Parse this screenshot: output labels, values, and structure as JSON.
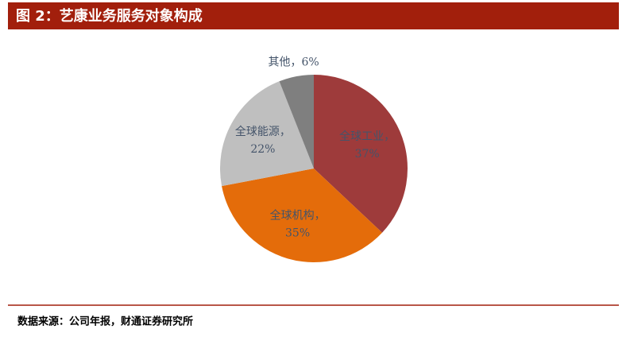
{
  "chart_data": {
    "type": "pie",
    "title": "图 2：艺康业务服务对象构成",
    "categories": [
      "全球工业",
      "全球机构",
      "全球能源",
      "其他"
    ],
    "values": [
      37,
      35,
      22,
      6
    ],
    "value_labels": [
      "37%",
      "35%",
      "22%",
      "6%"
    ],
    "label_separator": "，",
    "colors": [
      "#9e3b3b",
      "#e46c0a",
      "#bfbfbf",
      "#7f7f7f"
    ],
    "source": "数据来源：公司年报，财通证券研究所"
  }
}
